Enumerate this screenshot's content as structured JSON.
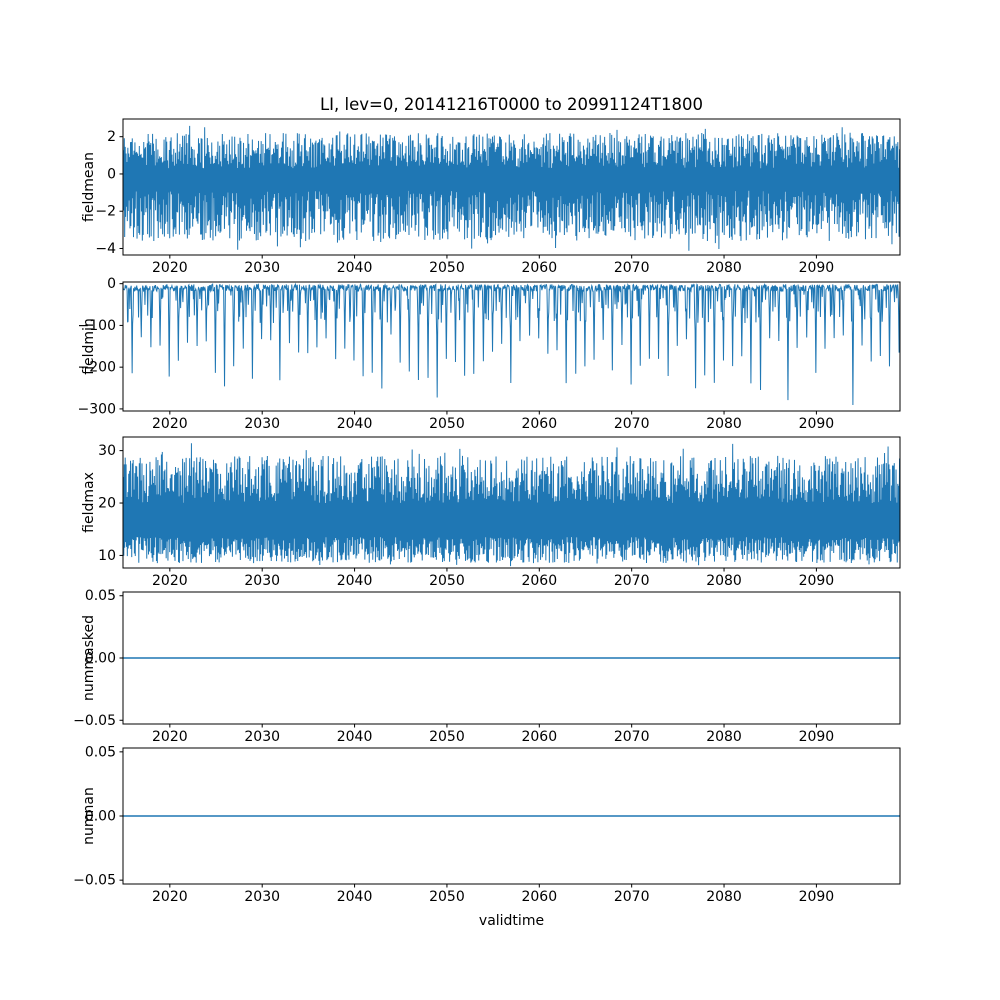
{
  "figure": {
    "title": "LI, lev=0, 20141216T0000 to 20991124T1800",
    "xlabel": "validtime",
    "background": "#ffffff",
    "line_color": "#1f77b4",
    "axis_color": "#000000"
  },
  "chart_data": [
    {
      "id": "fieldmean",
      "type": "line",
      "ylabel": "fieldmean",
      "xlim": [
        2014.93,
        2099.05
      ],
      "ylim": [
        -4.35,
        2.95
      ],
      "xticks": [
        2020,
        2030,
        2040,
        2050,
        2060,
        2070,
        2080,
        2090
      ],
      "xtick_labels": [
        "2020",
        "2030",
        "2040",
        "2050",
        "2060",
        "2070",
        "2080",
        "2090"
      ],
      "yticks": [
        -4,
        -2,
        0,
        2
      ],
      "ytick_labels": [
        "−4",
        "−2",
        "0",
        "2"
      ],
      "grid": false,
      "series": [
        {
          "name": "fieldmean",
          "kind": "noise-band",
          "low_range": [
            -3.6,
            -0.9
          ],
          "high_range": [
            0.3,
            2.2
          ],
          "low_extreme": -4.3,
          "high_extreme": 2.7,
          "samples": 880,
          "seed": 11
        }
      ]
    },
    {
      "id": "fieldmin",
      "type": "line",
      "ylabel": "fieldmin",
      "xlim": [
        2014.93,
        2099.05
      ],
      "ylim": [
        -305,
        4
      ],
      "xticks": [
        2020,
        2030,
        2040,
        2050,
        2060,
        2070,
        2080,
        2090
      ],
      "xtick_labels": [
        "2020",
        "2030",
        "2040",
        "2050",
        "2060",
        "2070",
        "2080",
        "2090"
      ],
      "yticks": [
        -300,
        -200,
        -100,
        0
      ],
      "ytick_labels": [
        "−300",
        "−200",
        "−100",
        "0"
      ],
      "grid": false,
      "series": [
        {
          "name": "fieldmin",
          "kind": "baseline-spikes",
          "baseline_range": [
            -18,
            -1.5
          ],
          "annual_spike_depth_range": [
            -255,
            -120
          ],
          "extreme_spike_depth": -293,
          "medium_spike_depth_range": [
            -95,
            -25
          ],
          "samples": 1700,
          "seed": 22
        }
      ]
    },
    {
      "id": "fieldmax",
      "type": "line",
      "ylabel": "fieldmax",
      "xlim": [
        2014.93,
        2099.05
      ],
      "ylim": [
        7.6,
        32.6
      ],
      "xticks": [
        2020,
        2030,
        2040,
        2050,
        2060,
        2070,
        2080,
        2090
      ],
      "xtick_labels": [
        "2020",
        "2030",
        "2040",
        "2050",
        "2060",
        "2070",
        "2080",
        "2090"
      ],
      "yticks": [
        10,
        20,
        30
      ],
      "ytick_labels": [
        "10",
        "20",
        "30"
      ],
      "grid": false,
      "series": [
        {
          "name": "fieldmax",
          "kind": "noise-band",
          "low_range": [
            8.5,
            13.5
          ],
          "high_range": [
            20,
            29
          ],
          "low_extreme": 7.9,
          "high_extreme": 31.5,
          "samples": 880,
          "seed": 33
        }
      ]
    },
    {
      "id": "nummasked",
      "type": "line",
      "ylabel": "nummasked",
      "xlim": [
        2014.93,
        2099.05
      ],
      "ylim": [
        -0.053,
        0.053
      ],
      "xticks": [
        2020,
        2030,
        2040,
        2050,
        2060,
        2070,
        2080,
        2090
      ],
      "xtick_labels": [
        "2020",
        "2030",
        "2040",
        "2050",
        "2060",
        "2070",
        "2080",
        "2090"
      ],
      "yticks": [
        -0.05,
        0,
        0.05
      ],
      "ytick_labels": [
        "−0.05",
        "0.00",
        "0.05"
      ],
      "grid": false,
      "series": [
        {
          "name": "nummasked",
          "kind": "constant",
          "value": 0
        }
      ]
    },
    {
      "id": "numnan",
      "type": "line",
      "ylabel": "numnan",
      "xlim": [
        2014.93,
        2099.05
      ],
      "ylim": [
        -0.053,
        0.053
      ],
      "xticks": [
        2020,
        2030,
        2040,
        2050,
        2060,
        2070,
        2080,
        2090
      ],
      "xtick_labels": [
        "2020",
        "2030",
        "2040",
        "2050",
        "2060",
        "2070",
        "2080",
        "2090"
      ],
      "yticks": [
        -0.05,
        0,
        0.05
      ],
      "ytick_labels": [
        "−0.05",
        "0.00",
        "0.05"
      ],
      "grid": false,
      "series": [
        {
          "name": "numnan",
          "kind": "constant",
          "value": 0
        }
      ]
    }
  ]
}
